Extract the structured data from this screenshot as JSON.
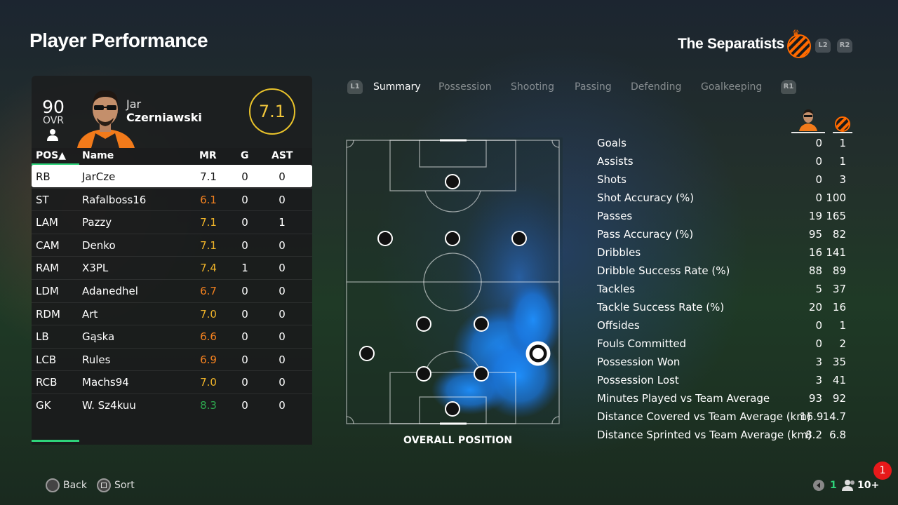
{
  "header": {
    "title": "Player Performance",
    "team_name": "The Separatists",
    "l2": "L2",
    "r2": "R2"
  },
  "player": {
    "ovr": "90",
    "ovr_label": "OVR",
    "first_name": "Jar",
    "last_name": "Czerniawski",
    "rating": "7.1"
  },
  "table": {
    "headers": {
      "pos": "POS▲",
      "name": "Name",
      "mr": "MR",
      "g": "G",
      "ast": "AST"
    },
    "rows": [
      {
        "pos": "RB",
        "name": "JarCze",
        "mr": "7.1",
        "g": "0",
        "ast": "0",
        "mr_color": "#111111"
      },
      {
        "pos": "ST",
        "name": "Rafalboss16",
        "mr": "6.1",
        "g": "0",
        "ast": "0",
        "mr_color": "#f5821f"
      },
      {
        "pos": "LAM",
        "name": "Pazzy",
        "mr": "7.1",
        "g": "0",
        "ast": "1",
        "mr_color": "#f0b429"
      },
      {
        "pos": "CAM",
        "name": "Denko",
        "mr": "7.1",
        "g": "0",
        "ast": "0",
        "mr_color": "#f0b429"
      },
      {
        "pos": "RAM",
        "name": "X3PL",
        "mr": "7.4",
        "g": "1",
        "ast": "0",
        "mr_color": "#f0b429"
      },
      {
        "pos": "LDM",
        "name": "Adanedhel",
        "mr": "6.7",
        "g": "0",
        "ast": "0",
        "mr_color": "#f5821f"
      },
      {
        "pos": "RDM",
        "name": "Art",
        "mr": "7.0",
        "g": "0",
        "ast": "0",
        "mr_color": "#f0b429"
      },
      {
        "pos": "LB",
        "name": "Gąska",
        "mr": "6.6",
        "g": "0",
        "ast": "0",
        "mr_color": "#f5821f"
      },
      {
        "pos": "LCB",
        "name": "Rules",
        "mr": "6.9",
        "g": "0",
        "ast": "0",
        "mr_color": "#f5821f"
      },
      {
        "pos": "RCB",
        "name": "Machs94",
        "mr": "7.0",
        "g": "0",
        "ast": "0",
        "mr_color": "#f0b429"
      },
      {
        "pos": "GK",
        "name": "W. Sz4kuu",
        "mr": "8.3",
        "g": "0",
        "ast": "0",
        "mr_color": "#2ea84f"
      }
    ]
  },
  "tabs": {
    "l1": "L1",
    "r1": "R1",
    "items": [
      "Summary",
      "Possession",
      "Shooting",
      "Passing",
      "Defending",
      "Goalkeeping"
    ],
    "active": "Summary"
  },
  "pitch": {
    "caption": "OVERALL POSITION"
  },
  "stats": [
    {
      "label": "Goals",
      "player": "0",
      "team": "1"
    },
    {
      "label": "Assists",
      "player": "0",
      "team": "1"
    },
    {
      "label": "Shots",
      "player": "0",
      "team": "3"
    },
    {
      "label": "Shot Accuracy (%)",
      "player": "0",
      "team": "100"
    },
    {
      "label": "Passes",
      "player": "19",
      "team": "165"
    },
    {
      "label": "Pass Accuracy (%)",
      "player": "95",
      "team": "82"
    },
    {
      "label": "Dribbles",
      "player": "16",
      "team": "141"
    },
    {
      "label": "Dribble Success Rate (%)",
      "player": "88",
      "team": "89"
    },
    {
      "label": "Tackles",
      "player": "5",
      "team": "37"
    },
    {
      "label": "Tackle Success Rate (%)",
      "player": "20",
      "team": "16"
    },
    {
      "label": "Offsides",
      "player": "0",
      "team": "1"
    },
    {
      "label": "Fouls Committed",
      "player": "0",
      "team": "2"
    },
    {
      "label": "Possession Won",
      "player": "3",
      "team": "35"
    },
    {
      "label": "Possession Lost",
      "player": "3",
      "team": "41"
    },
    {
      "label": "Minutes Played vs Team Average",
      "player": "93",
      "team": "92"
    },
    {
      "label": "Distance Covered vs Team Average (km)",
      "player": "16.9",
      "team": "14.7"
    },
    {
      "label": "Distance Sprinted vs Team Average (km)",
      "player": "8.2",
      "team": "6.8"
    }
  ],
  "footer": {
    "back": "Back",
    "sort": "Sort",
    "online": "1",
    "friends": "10+",
    "notifications": "1"
  },
  "colors": {
    "accent_green": "#2ed37a",
    "rating_gold": "#f0c53c",
    "crest_orange": "#ff6a00",
    "heat_blue": "#1e90ff"
  }
}
